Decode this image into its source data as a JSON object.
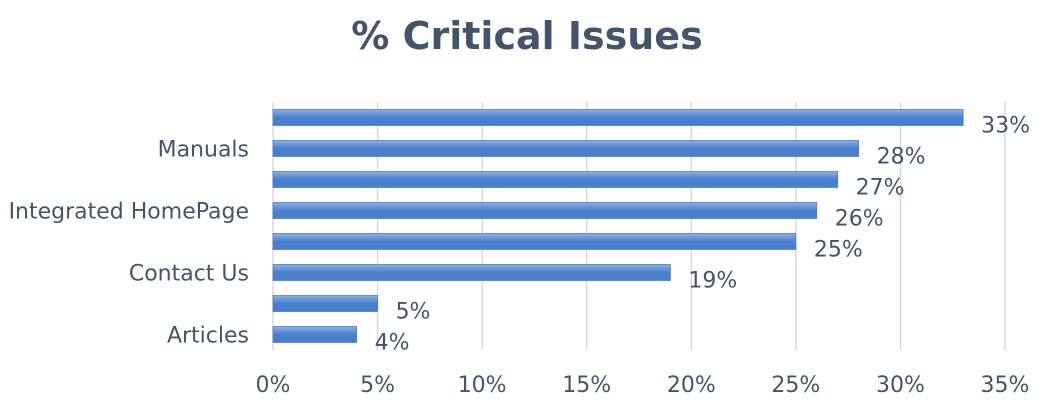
{
  "chart_data": {
    "type": "bar",
    "orientation": "horizontal",
    "title": "% Critical Issues",
    "xlabel": "",
    "ylabel": "",
    "categories": [
      "Articles",
      "",
      "Contact Us",
      "",
      "Integrated HomePage",
      "",
      "Manuals",
      ""
    ],
    "values": [
      4,
      5,
      19,
      25,
      26,
      27,
      28,
      33
    ],
    "data_labels": [
      "4%",
      "5%",
      "19%",
      "25%",
      "26%",
      "27%",
      "28%",
      "33%"
    ],
    "xlim": [
      0,
      35
    ],
    "x_ticks": [
      0,
      5,
      10,
      15,
      20,
      25,
      30,
      35
    ],
    "x_tick_labels": [
      "0%",
      "5%",
      "10%",
      "15%",
      "20%",
      "25%",
      "30%",
      "35%"
    ],
    "grid": true,
    "legend": "none",
    "colors": {
      "bar": "#4a7fcc",
      "bar_light": "#8cb2e6",
      "text": "#44546a",
      "grid": "#d9d9d9"
    }
  }
}
